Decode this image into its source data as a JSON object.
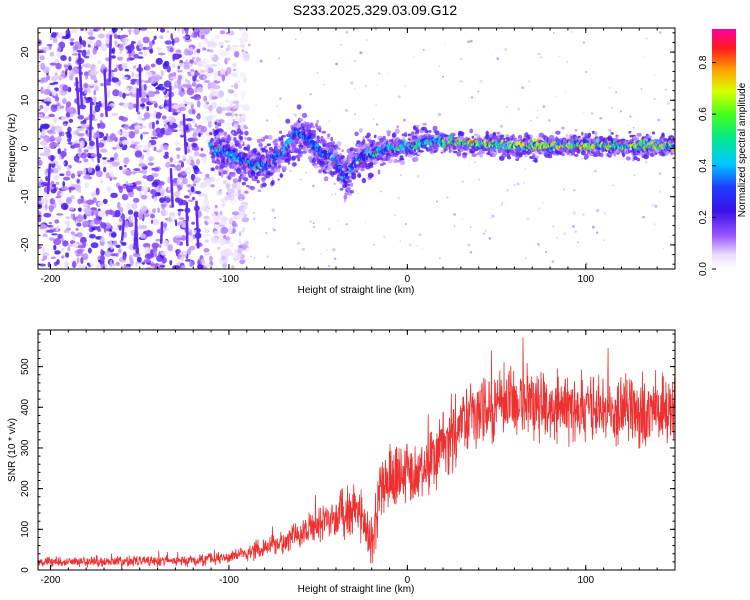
{
  "title": "S233.2025.329.03.09.G12",
  "colors": {
    "snr_line": "#ee3030",
    "frame": "#000000",
    "background": "#ffffff"
  },
  "chart_data": [
    {
      "type": "heatmap",
      "title": "S233.2025.329.03.09.G12",
      "xlabel": "Height of straight line (km)",
      "ylabel": "Frequency (Hz)",
      "xlim": [
        -207,
        150
      ],
      "ylim": [
        -25,
        25
      ],
      "xticks": [
        -200,
        -100,
        0,
        100
      ],
      "yticks": [
        -20,
        -10,
        0,
        10,
        20
      ],
      "colorbar": {
        "label": "Normalized spectral amplitude",
        "range": [
          0.0,
          0.93
        ],
        "ticks": [
          0.0,
          0.2,
          0.4,
          0.6,
          0.8
        ],
        "tick_labels": [
          "0.0",
          "0.2",
          "0.4",
          "0.6",
          "0.8"
        ]
      },
      "signal_track": {
        "description_free_points": [
          {
            "x": -110,
            "f": 0.5
          },
          {
            "x": -100,
            "f": -1
          },
          {
            "x": -90,
            "f": -2.5
          },
          {
            "x": -80,
            "f": -4
          },
          {
            "x": -75,
            "f": -2
          },
          {
            "x": -70,
            "f": -1
          },
          {
            "x": -62,
            "f": 3.5
          },
          {
            "x": -55,
            "f": 2
          },
          {
            "x": -48,
            "f": -1
          },
          {
            "x": -40,
            "f": -2
          },
          {
            "x": -35,
            "f": -6
          },
          {
            "x": -30,
            "f": -3
          },
          {
            "x": -20,
            "f": -1
          },
          {
            "x": -10,
            "f": 0
          },
          {
            "x": 0,
            "f": 0.5
          },
          {
            "x": 10,
            "f": 1.5
          },
          {
            "x": 20,
            "f": 1.5
          },
          {
            "x": 40,
            "f": 1
          },
          {
            "x": 60,
            "f": 0.5
          },
          {
            "x": 80,
            "f": 0.5
          },
          {
            "x": 100,
            "f": 0.7
          },
          {
            "x": 120,
            "f": 0.5
          },
          {
            "x": 140,
            "f": 0.5
          },
          {
            "x": 150,
            "f": 0.5
          }
        ]
      },
      "noise_region_xlim": [
        -207,
        -100
      ]
    },
    {
      "type": "line",
      "xlabel": "Height of straight line (km)",
      "ylabel": "SNR (10 * v/v)",
      "xlim": [
        -207,
        150
      ],
      "ylim": [
        0,
        590
      ],
      "xticks": [
        -200,
        -100,
        0,
        100
      ],
      "yticks": [
        0,
        100,
        200,
        300,
        400,
        500
      ],
      "series": [
        {
          "name": "SNR",
          "trend": [
            {
              "x": -207,
              "y": 20
            },
            {
              "x": -150,
              "y": 22
            },
            {
              "x": -110,
              "y": 25
            },
            {
              "x": -90,
              "y": 40
            },
            {
              "x": -70,
              "y": 70
            },
            {
              "x": -50,
              "y": 110
            },
            {
              "x": -40,
              "y": 130
            },
            {
              "x": -30,
              "y": 150
            },
            {
              "x": -25,
              "y": 140
            },
            {
              "x": -20,
              "y": 60
            },
            {
              "x": -15,
              "y": 200
            },
            {
              "x": -5,
              "y": 250
            },
            {
              "x": 5,
              "y": 230
            },
            {
              "x": 15,
              "y": 280
            },
            {
              "x": 25,
              "y": 340
            },
            {
              "x": 40,
              "y": 390
            },
            {
              "x": 60,
              "y": 410
            },
            {
              "x": 80,
              "y": 400
            },
            {
              "x": 100,
              "y": 395
            },
            {
              "x": 120,
              "y": 390
            },
            {
              "x": 150,
              "y": 385
            }
          ],
          "noise_spread": [
            {
              "x": -207,
              "y": 12
            },
            {
              "x": -100,
              "y": 15
            },
            {
              "x": -60,
              "y": 35
            },
            {
              "x": -30,
              "y": 70
            },
            {
              "x": 0,
              "y": 80
            },
            {
              "x": 30,
              "y": 90
            },
            {
              "x": 150,
              "y": 90
            }
          ]
        }
      ]
    }
  ]
}
